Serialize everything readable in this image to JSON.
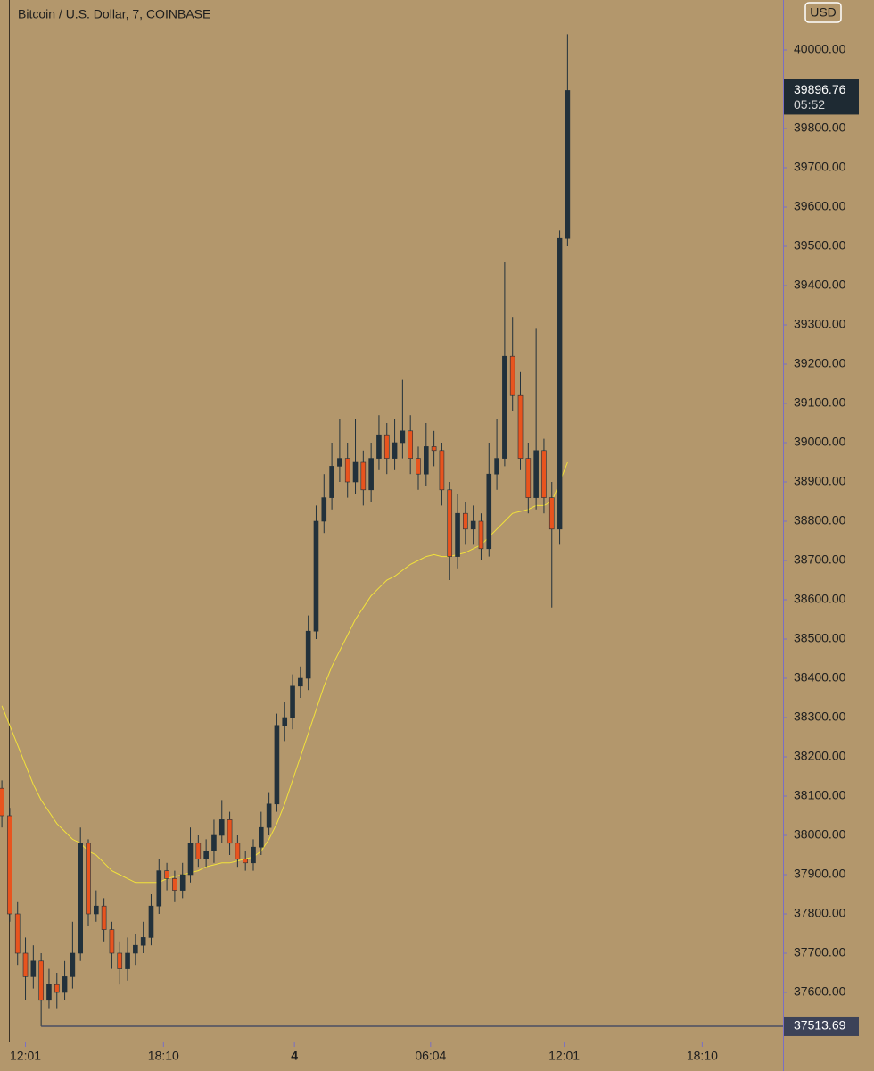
{
  "chart_data": {
    "type": "candlestick",
    "title": "Bitcoin / U.S. Dollar, 7, COINBASE",
    "currency": "USD",
    "countdown": "05:52",
    "background": "#b3976c",
    "up_color": "#22313b",
    "down_color": "#e8541e",
    "x": [
      -63,
      -42,
      -21,
      0,
      21,
      42,
      63,
      84,
      105,
      126,
      147,
      168,
      189,
      210,
      231,
      252,
      273,
      294,
      315,
      336,
      357,
      378,
      399,
      420,
      441,
      462,
      483,
      504,
      525,
      546,
      567,
      588,
      609,
      630,
      651,
      672,
      693,
      714,
      735,
      756,
      777,
      798,
      819,
      840,
      861,
      882,
      903,
      924,
      945,
      966,
      987,
      1008,
      1029,
      1050,
      1071,
      1092,
      1113,
      1134,
      1155,
      1176,
      1197,
      1218,
      1239,
      1260,
      1281,
      1302,
      1323,
      1344,
      1365,
      1386,
      1407,
      1428,
      1449
    ],
    "open": [
      38120,
      38050,
      37800,
      37700,
      37640,
      37680,
      37580,
      37620,
      37600,
      37640,
      37700,
      37980,
      37800,
      37820,
      37760,
      37700,
      37660,
      37700,
      37720,
      37740,
      37820,
      37910,
      37890,
      37860,
      37900,
      37980,
      37940,
      37960,
      38000,
      38040,
      37980,
      37940,
      37930,
      37970,
      38020,
      38080,
      38280,
      38300,
      38380,
      38400,
      38520,
      38800,
      38860,
      38940,
      38960,
      38900,
      38950,
      38880,
      38960,
      39020,
      38960,
      39000,
      39030,
      38960,
      38920,
      38990,
      38980,
      38880,
      38710,
      38820,
      38780,
      38800,
      38730,
      38920,
      38960,
      39220,
      39120,
      38960,
      38860,
      38980,
      38860,
      38780,
      39520
    ],
    "high": [
      38140,
      38070,
      37830,
      37740,
      37720,
      37700,
      37660,
      37650,
      37680,
      37780,
      38020,
      37990,
      37860,
      37840,
      37780,
      37730,
      37740,
      37750,
      37780,
      37850,
      37940,
      37930,
      37910,
      37930,
      38020,
      38000,
      37990,
      38040,
      38090,
      38060,
      38000,
      37960,
      37990,
      38060,
      38110,
      38310,
      38340,
      38410,
      38430,
      38560,
      38840,
      38920,
      39000,
      39060,
      39000,
      39060,
      38980,
      39000,
      39070,
      39050,
      39060,
      39160,
      39070,
      38990,
      39050,
      39030,
      39000,
      38900,
      38870,
      38850,
      38840,
      38820,
      39000,
      39060,
      39460,
      39320,
      39180,
      39000,
      39290,
      39010,
      38900,
      39540,
      40040
    ],
    "low": [
      38020,
      37780,
      37670,
      37580,
      37610,
      37513.69,
      37560,
      37560,
      37580,
      37610,
      37680,
      37770,
      37780,
      37730,
      37660,
      37620,
      37630,
      37670,
      37700,
      37720,
      37800,
      37860,
      37830,
      37840,
      37880,
      37920,
      37920,
      37930,
      37980,
      37950,
      37920,
      37910,
      37910,
      37950,
      38000,
      38060,
      38240,
      38270,
      38350,
      38370,
      38500,
      38770,
      38830,
      38900,
      38860,
      38870,
      38840,
      38850,
      38930,
      38920,
      38930,
      38960,
      38920,
      38880,
      38890,
      38940,
      38840,
      38650,
      38680,
      38740,
      38740,
      38700,
      38710,
      38880,
      38940,
      39080,
      38930,
      38820,
      38830,
      38820,
      38580,
      38740,
      39500
    ],
    "close": [
      38050,
      37800,
      37700,
      37640,
      37680,
      37580,
      37620,
      37600,
      37640,
      37700,
      37980,
      37800,
      37820,
      37760,
      37700,
      37660,
      37700,
      37720,
      37740,
      37820,
      37910,
      37890,
      37860,
      37900,
      37980,
      37940,
      37960,
      38000,
      38040,
      37980,
      37940,
      37930,
      37970,
      38020,
      38080,
      38280,
      38300,
      38380,
      38400,
      38520,
      38800,
      38860,
      38940,
      38960,
      38900,
      38950,
      38880,
      38960,
      39020,
      38960,
      39000,
      39030,
      38960,
      38920,
      38990,
      38980,
      38880,
      38710,
      38820,
      38780,
      38800,
      38730,
      38920,
      38960,
      39220,
      39120,
      38960,
      38860,
      38980,
      38860,
      38780,
      39520,
      39896.76
    ],
    "moving_average": {
      "color": "#f2e23a",
      "values": [
        38330,
        38280,
        38230,
        38180,
        38130,
        38090,
        38060,
        38030,
        38010,
        37990,
        37980,
        37960,
        37950,
        37930,
        37910,
        37900,
        37890,
        37880,
        37880,
        37880,
        37880,
        37890,
        37895,
        37900,
        37905,
        37910,
        37920,
        37925,
        37930,
        37930,
        37935,
        37940,
        37945,
        37960,
        37990,
        38030,
        38080,
        38140,
        38200,
        38260,
        38320,
        38380,
        38430,
        38470,
        38510,
        38550,
        38580,
        38610,
        38630,
        38650,
        38660,
        38675,
        38690,
        38700,
        38710,
        38715,
        38710,
        38710,
        38715,
        38720,
        38730,
        38740,
        38760,
        38780,
        38800,
        38820,
        38825,
        38830,
        38840,
        38840,
        38850,
        38900,
        38950
      ]
    },
    "xlim": [
      -68,
      2025
    ],
    "ylim": [
      37472.7,
      40127.3
    ],
    "xticks": [
      {
        "value": 0,
        "label": "12:01"
      },
      {
        "value": 369,
        "label": "18:10"
      },
      {
        "value": 719,
        "label": "4"
      },
      {
        "value": 1083,
        "label": "06:04"
      },
      {
        "value": 1440,
        "label": "12:01"
      },
      {
        "value": 1809,
        "label": "18:10"
      }
    ],
    "yticks": [
      {
        "value": 37600,
        "label": "37600.00"
      },
      {
        "value": 37700,
        "label": "37700.00"
      },
      {
        "value": 37800,
        "label": "37800.00"
      },
      {
        "value": 37900,
        "label": "37900.00"
      },
      {
        "value": 38000,
        "label": "38000.00"
      },
      {
        "value": 38100,
        "label": "38100.00"
      },
      {
        "value": 38200,
        "label": "38200.00"
      },
      {
        "value": 38300,
        "label": "38300.00"
      },
      {
        "value": 38400,
        "label": "38400.00"
      },
      {
        "value": 38500,
        "label": "38500.00"
      },
      {
        "value": 38600,
        "label": "38600.00"
      },
      {
        "value": 38700,
        "label": "38700.00"
      },
      {
        "value": 38800,
        "label": "38800.00"
      },
      {
        "value": 38900,
        "label": "38900.00"
      },
      {
        "value": 39000,
        "label": "39000.00"
      },
      {
        "value": 39100,
        "label": "39100.00"
      },
      {
        "value": 39200,
        "label": "39200.00"
      },
      {
        "value": 39300,
        "label": "39300.00"
      },
      {
        "value": 39400,
        "label": "39400.00"
      },
      {
        "value": 39500,
        "label": "39500.00"
      },
      {
        "value": 39600,
        "label": "39600.00"
      },
      {
        "value": 39700,
        "label": "39700.00"
      },
      {
        "value": 39800,
        "label": "39800.00"
      },
      {
        "value": 39900,
        "label": "39900.00"
      },
      {
        "value": 40000,
        "label": "40000.00"
      }
    ],
    "grid": false
  }
}
